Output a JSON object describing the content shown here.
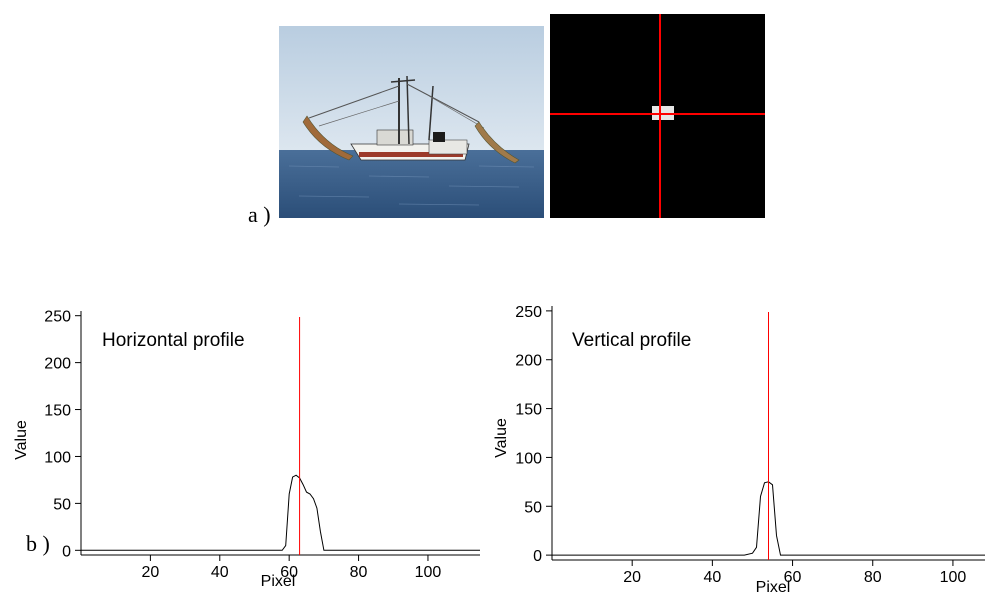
{
  "labels": {
    "a": "a )",
    "b": "b )"
  },
  "colors": {
    "marker": "#ff0000",
    "profile_line": "#000000",
    "sea": "#3a5f8c",
    "sky": "#c7d7e6"
  },
  "images": {
    "photo": "shrimp-trawler-at-sea-photo",
    "saliency": "saliency-map-with-red-crosshair"
  },
  "chart_data": [
    {
      "type": "line",
      "title": "Horizontal profile",
      "xlabel": "Pixel",
      "ylabel": "Value",
      "xlim": [
        0,
        115
      ],
      "ylim": [
        -5,
        255
      ],
      "xticks": [
        20,
        40,
        60,
        80,
        100
      ],
      "yticks": [
        0,
        50,
        100,
        150,
        200,
        250
      ],
      "marker_x": 63,
      "series": [
        {
          "x": [
            0,
            58,
            59,
            60,
            61,
            62,
            63,
            64,
            65,
            66,
            67,
            68,
            69,
            70,
            115
          ],
          "y": [
            0,
            0,
            5,
            60,
            78,
            80,
            77,
            70,
            62,
            60,
            55,
            45,
            20,
            0,
            0
          ]
        }
      ]
    },
    {
      "type": "line",
      "title": "Vertical profile",
      "xlabel": "Pixel",
      "ylabel": "Value",
      "xlim": [
        0,
        108
      ],
      "ylim": [
        -5,
        255
      ],
      "xticks": [
        20,
        40,
        60,
        80,
        100
      ],
      "yticks": [
        0,
        50,
        100,
        150,
        200,
        250
      ],
      "marker_x": 54,
      "series": [
        {
          "x": [
            0,
            48,
            50,
            51,
            52,
            53,
            54,
            55,
            56,
            57,
            108
          ],
          "y": [
            0,
            0,
            2,
            8,
            60,
            74,
            75,
            72,
            20,
            0,
            0
          ]
        }
      ]
    }
  ]
}
